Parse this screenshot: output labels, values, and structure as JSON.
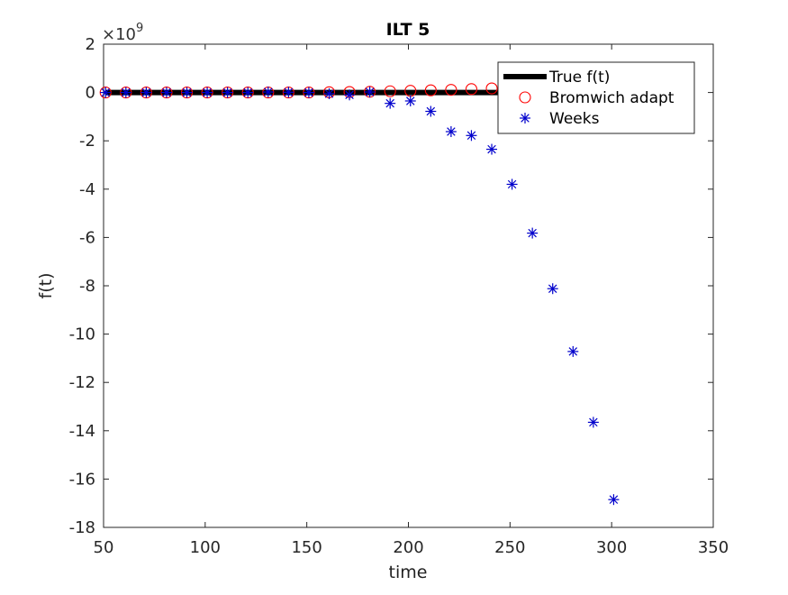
{
  "chart_data": {
    "type": "scatter",
    "title": "ILT 5",
    "xlabel": "time",
    "ylabel": "f(t)",
    "y_exponent_label": "×10",
    "y_exponent_power": "9",
    "y_scale": 1000000000.0,
    "xlim": [
      50,
      350
    ],
    "ylim": [
      -18,
      2
    ],
    "x_ticks": [
      50,
      100,
      150,
      200,
      250,
      300,
      350
    ],
    "y_ticks": [
      2,
      0,
      -2,
      -4,
      -6,
      -8,
      -10,
      -12,
      -14,
      -16,
      -18
    ],
    "x_tick_labels": [
      "50",
      "100",
      "150",
      "200",
      "250",
      "300",
      "350"
    ],
    "y_tick_labels": [
      "2",
      "0",
      "-2",
      "-4",
      "-6",
      "-8",
      "-10",
      "-12",
      "-14",
      "-16",
      "-18"
    ],
    "grid": false,
    "legend_position": "top-right",
    "series": [
      {
        "name": "True f(t)",
        "style": "line",
        "color": "#000000",
        "x": [
          51,
          251
        ],
        "y": [
          0,
          0
        ]
      },
      {
        "name": "Bromwich adapt",
        "style": "circle",
        "color": "#ff0000",
        "x": [
          51,
          61,
          71,
          81,
          91,
          101,
          111,
          121,
          131,
          141,
          151,
          161,
          171,
          181,
          191,
          201,
          211,
          221,
          231,
          241,
          251
        ],
        "y": [
          0,
          0,
          0,
          0,
          0,
          0,
          0,
          0,
          0,
          0,
          0,
          0.01,
          0.02,
          0.03,
          0.05,
          0.07,
          0.09,
          0.11,
          0.14,
          0.17,
          0.2
        ]
      },
      {
        "name": "Weeks",
        "style": "asterisk",
        "color": "#0000cc",
        "x": [
          51,
          61,
          71,
          81,
          91,
          101,
          111,
          121,
          131,
          141,
          151,
          161,
          171,
          181,
          191,
          201,
          211,
          221,
          231,
          241,
          251,
          261,
          271,
          281,
          291,
          301
        ],
        "y": [
          0,
          0,
          0,
          0,
          0,
          0,
          0,
          0,
          0.02,
          0.01,
          0,
          -0.05,
          -0.1,
          0.02,
          -0.45,
          -0.35,
          -0.78,
          -1.62,
          -1.78,
          -2.35,
          -3.8,
          -5.82,
          -8.12,
          -10.72,
          -13.65,
          -16.85
        ]
      }
    ]
  }
}
